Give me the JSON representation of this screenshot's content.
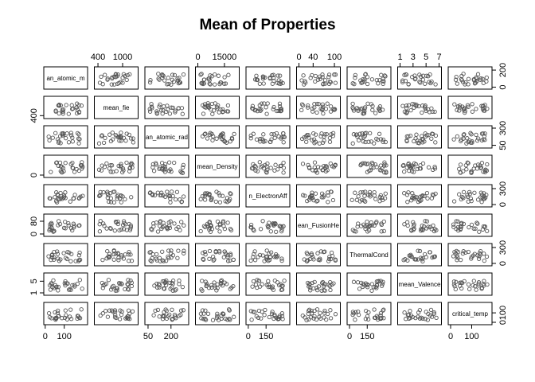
{
  "chart_data": {
    "type": "scatter",
    "subtype": "scatterplot-matrix",
    "title": "Mean of Properties",
    "variables": [
      "mean_atomic_mass",
      "mean_fie",
      "mean_atomic_radius",
      "mean_Density",
      "mean_ElectronAffinity",
      "mean_FusionHeat",
      "mean_ThermalConductivity",
      "mean_Valence",
      "critical_temp"
    ],
    "diagonal_labels": [
      "an_atomic_m",
      "mean_fie",
      "an_atomic_rad",
      "mean_Density",
      "n_ElectronAff",
      "ean_FusionHe",
      "ThermalCond",
      "mean_Valence",
      "critical_temp"
    ],
    "ranges": [
      [
        5,
        210
      ],
      [
        370,
        1320
      ],
      [
        45,
        300
      ],
      [
        0,
        22000
      ],
      [
        1,
        330
      ],
      [
        0,
        110
      ],
      [
        0,
        330
      ],
      [
        1,
        7
      ],
      [
        0,
        185
      ]
    ],
    "axis_ticks": {
      "top": [
        {
          "col": 1,
          "ticks": [
            400,
            1000
          ],
          "labels": [
            "400",
            "1000"
          ]
        },
        {
          "col": 3,
          "ticks": [
            0,
            15000
          ],
          "labels": [
            "0",
            "15000"
          ]
        },
        {
          "col": 5,
          "ticks": [
            0,
            40,
            100
          ],
          "labels": [
            "0",
            "40",
            "100"
          ]
        },
        {
          "col": 7,
          "ticks": [
            1,
            3,
            5,
            7
          ],
          "labels": [
            "1",
            "3",
            "5",
            "7"
          ]
        }
      ],
      "bottom": [
        {
          "col": 0,
          "ticks": [
            0,
            100
          ],
          "labels": [
            "0",
            "100"
          ]
        },
        {
          "col": 2,
          "ticks": [
            50,
            200
          ],
          "labels": [
            "50",
            "200"
          ]
        },
        {
          "col": 4,
          "ticks": [
            0,
            150
          ],
          "labels": [
            "0",
            "150"
          ]
        },
        {
          "col": 6,
          "ticks": [
            0,
            150
          ],
          "labels": [
            "0",
            "150"
          ]
        },
        {
          "col": 8,
          "ticks": [
            0,
            100
          ],
          "labels": [
            "0",
            "100"
          ]
        }
      ],
      "left": [
        {
          "row": 1,
          "ticks": [
            400
          ],
          "labels": [
            "400"
          ]
        },
        {
          "row": 3,
          "ticks": [
            0
          ],
          "labels": [
            "0"
          ]
        },
        {
          "row": 5,
          "ticks": [
            0,
            80
          ],
          "labels": [
            "0",
            "80"
          ]
        },
        {
          "row": 7,
          "ticks": [
            1,
            5
          ],
          "labels": [
            "1",
            "5"
          ]
        }
      ],
      "right": [
        {
          "row": 0,
          "ticks": [
            0,
            200
          ],
          "labels": [
            "0",
            "200"
          ]
        },
        {
          "row": 2,
          "ticks": [
            50,
            300
          ],
          "labels": [
            "50",
            "300"
          ]
        },
        {
          "row": 4,
          "ticks": [
            0,
            300
          ],
          "labels": [
            "0",
            "300"
          ]
        },
        {
          "row": 6,
          "ticks": [
            0,
            300
          ],
          "labels": [
            "0",
            "300"
          ]
        },
        {
          "row": 8,
          "ticks": [
            0,
            100
          ],
          "labels": [
            "0",
            "100"
          ]
        }
      ]
    },
    "marker": "open-circle",
    "point_color": "#555555",
    "grid": false,
    "legend": "none"
  }
}
